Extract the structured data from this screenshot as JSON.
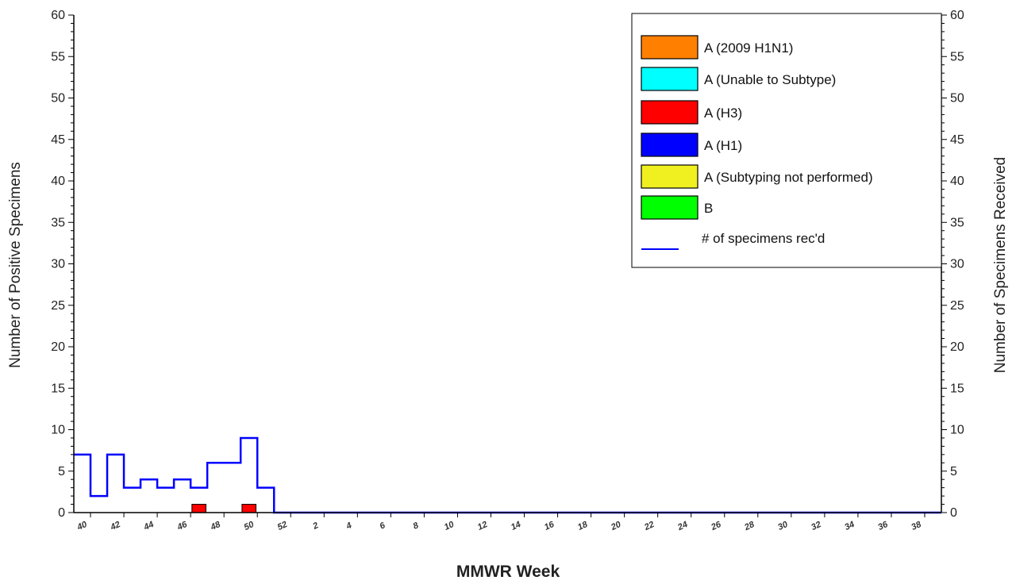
{
  "chart_data": {
    "type": "bar",
    "xlabel": "MMWR Week",
    "ylabel_left": "Number of Positive Specimens",
    "ylabel_right": "Number of Specimens Received",
    "ylim": [
      0,
      60
    ],
    "ytick_step": 5,
    "grid": false,
    "legend_position": "top-right",
    "weeks": [
      40,
      41,
      42,
      43,
      44,
      45,
      46,
      47,
      48,
      49,
      50,
      51,
      52,
      1,
      2,
      3,
      4,
      5,
      6,
      7,
      8,
      9,
      10,
      11,
      12,
      13,
      14,
      15,
      16,
      17,
      18,
      19,
      20,
      21,
      22,
      23,
      24,
      25,
      26,
      27,
      28,
      29,
      30,
      31,
      32,
      33,
      34,
      35,
      36,
      37,
      38,
      39
    ],
    "x_tick_labels": [
      "40",
      "42",
      "44",
      "46",
      "48",
      "50",
      "52",
      "2",
      "4",
      "6",
      "8",
      "10",
      "12",
      "14",
      "16",
      "18",
      "20",
      "22",
      "24",
      "26",
      "28",
      "30",
      "32",
      "34",
      "36",
      "38"
    ],
    "series": [
      {
        "name": "A (2009 H1N1)",
        "color": "#ff8000",
        "kind": "bar",
        "values": [
          0,
          0,
          0,
          0,
          0,
          0,
          0,
          0,
          0,
          0,
          0,
          0,
          0,
          0,
          0,
          0,
          0,
          0,
          0,
          0,
          0,
          0,
          0,
          0,
          0,
          0,
          0,
          0,
          0,
          0,
          0,
          0,
          0,
          0,
          0,
          0,
          0,
          0,
          0,
          0,
          0,
          0,
          0,
          0,
          0,
          0,
          0,
          0,
          0,
          0,
          0,
          0
        ]
      },
      {
        "name": "A (Unable to Subtype)",
        "color": "#00ffff",
        "kind": "bar",
        "values": [
          0,
          0,
          0,
          0,
          0,
          0,
          0,
          0,
          0,
          0,
          0,
          0,
          0,
          0,
          0,
          0,
          0,
          0,
          0,
          0,
          0,
          0,
          0,
          0,
          0,
          0,
          0,
          0,
          0,
          0,
          0,
          0,
          0,
          0,
          0,
          0,
          0,
          0,
          0,
          0,
          0,
          0,
          0,
          0,
          0,
          0,
          0,
          0,
          0,
          0,
          0,
          0
        ]
      },
      {
        "name": "A (H3)",
        "color": "#ff0000",
        "kind": "bar",
        "values": [
          0,
          0,
          0,
          0,
          0,
          0,
          0,
          1,
          0,
          0,
          1,
          0,
          0,
          0,
          0,
          0,
          0,
          0,
          0,
          0,
          0,
          0,
          0,
          0,
          0,
          0,
          0,
          0,
          0,
          0,
          0,
          0,
          0,
          0,
          0,
          0,
          0,
          0,
          0,
          0,
          0,
          0,
          0,
          0,
          0,
          0,
          0,
          0,
          0,
          0,
          0,
          0
        ]
      },
      {
        "name": "A (H1)",
        "color": "#0000ff",
        "kind": "bar",
        "values": [
          0,
          0,
          0,
          0,
          0,
          0,
          0,
          0,
          0,
          0,
          0,
          0,
          0,
          0,
          0,
          0,
          0,
          0,
          0,
          0,
          0,
          0,
          0,
          0,
          0,
          0,
          0,
          0,
          0,
          0,
          0,
          0,
          0,
          0,
          0,
          0,
          0,
          0,
          0,
          0,
          0,
          0,
          0,
          0,
          0,
          0,
          0,
          0,
          0,
          0,
          0,
          0
        ]
      },
      {
        "name": "A (Subtyping not performed)",
        "color": "#f0f020",
        "kind": "bar",
        "values": [
          0,
          0,
          0,
          0,
          0,
          0,
          0,
          0,
          0,
          0,
          0,
          0,
          0,
          0,
          0,
          0,
          0,
          0,
          0,
          0,
          0,
          0,
          0,
          0,
          0,
          0,
          0,
          0,
          0,
          0,
          0,
          0,
          0,
          0,
          0,
          0,
          0,
          0,
          0,
          0,
          0,
          0,
          0,
          0,
          0,
          0,
          0,
          0,
          0,
          0,
          0,
          0
        ]
      },
      {
        "name": "B",
        "color": "#00ff00",
        "kind": "bar",
        "values": [
          0,
          0,
          0,
          0,
          0,
          0,
          0,
          0,
          0,
          0,
          0,
          0,
          0,
          0,
          0,
          0,
          0,
          0,
          0,
          0,
          0,
          0,
          0,
          0,
          0,
          0,
          0,
          0,
          0,
          0,
          0,
          0,
          0,
          0,
          0,
          0,
          0,
          0,
          0,
          0,
          0,
          0,
          0,
          0,
          0,
          0,
          0,
          0,
          0,
          0,
          0,
          0
        ]
      },
      {
        "name": "# of specimens rec'd",
        "color": "#0000ff",
        "kind": "step-line",
        "values": [
          7,
          2,
          7,
          3,
          4,
          3,
          4,
          3,
          6,
          6,
          9,
          3,
          0,
          0,
          0,
          0,
          0,
          0,
          0,
          0,
          0,
          0,
          0,
          0,
          0,
          0,
          0,
          0,
          0,
          0,
          0,
          0,
          0,
          0,
          0,
          0,
          0,
          0,
          0,
          0,
          0,
          0,
          0,
          0,
          0,
          0,
          0,
          0,
          0,
          0,
          0,
          0
        ]
      }
    ]
  }
}
